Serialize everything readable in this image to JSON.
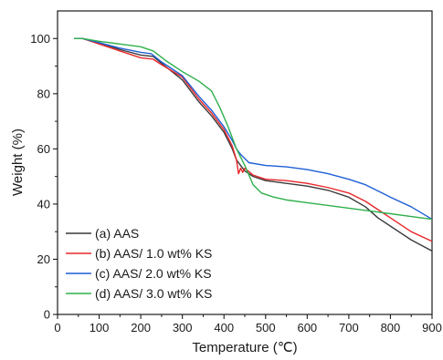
{
  "chart_data": {
    "type": "line",
    "xlabel": "Temperature (℃)",
    "ylabel": "Weight (%)",
    "xlim": [
      0,
      900
    ],
    "ylim": [
      0,
      110
    ],
    "xticks": [
      "0",
      "100",
      "200",
      "300",
      "400",
      "500",
      "600",
      "700",
      "800",
      "900"
    ],
    "yticks": [
      "0",
      "20",
      "40",
      "60",
      "80",
      "100"
    ],
    "grid": false,
    "legend_position": "bottom-left",
    "series": [
      {
        "name": "(a) AAS",
        "color": "#3a3a3a",
        "points": [
          [
            40,
            100
          ],
          [
            60,
            100
          ],
          [
            100,
            98.5
          ],
          [
            150,
            96
          ],
          [
            200,
            94
          ],
          [
            230,
            93.5
          ],
          [
            250,
            91
          ],
          [
            300,
            85
          ],
          [
            340,
            77
          ],
          [
            370,
            72
          ],
          [
            400,
            66
          ],
          [
            420,
            60
          ],
          [
            430,
            56
          ],
          [
            440,
            54
          ],
          [
            450,
            52
          ],
          [
            470,
            50
          ],
          [
            500,
            48.5
          ],
          [
            550,
            47.5
          ],
          [
            600,
            46.5
          ],
          [
            650,
            45
          ],
          [
            700,
            42.5
          ],
          [
            740,
            39
          ],
          [
            770,
            35
          ],
          [
            800,
            32
          ],
          [
            850,
            27
          ],
          [
            900,
            23
          ]
        ]
      },
      {
        "name": "(b) AAS/ 1.0 wt% KS",
        "color": "#e8262a",
        "points": [
          [
            40,
            100
          ],
          [
            60,
            100
          ],
          [
            100,
            98
          ],
          [
            150,
            95.5
          ],
          [
            200,
            93
          ],
          [
            230,
            92.5
          ],
          [
            250,
            90.5
          ],
          [
            300,
            86
          ],
          [
            340,
            78
          ],
          [
            370,
            73
          ],
          [
            400,
            67
          ],
          [
            420,
            61
          ],
          [
            430,
            56
          ],
          [
            435,
            51
          ],
          [
            440,
            53
          ],
          [
            445,
            51.5
          ],
          [
            450,
            53
          ],
          [
            470,
            50.5
          ],
          [
            500,
            49
          ],
          [
            550,
            48.5
          ],
          [
            600,
            47.5
          ],
          [
            650,
            46
          ],
          [
            700,
            44
          ],
          [
            740,
            41
          ],
          [
            780,
            37
          ],
          [
            800,
            35
          ],
          [
            850,
            30
          ],
          [
            900,
            26.5
          ]
        ]
      },
      {
        "name": "(c) AAS/ 2.0 wt% KS",
        "color": "#1f5fd6",
        "points": [
          [
            40,
            100
          ],
          [
            60,
            100
          ],
          [
            100,
            98.5
          ],
          [
            150,
            96.5
          ],
          [
            200,
            95
          ],
          [
            225,
            94.5
          ],
          [
            250,
            91.5
          ],
          [
            300,
            86.5
          ],
          [
            340,
            79
          ],
          [
            370,
            74
          ],
          [
            400,
            68
          ],
          [
            420,
            63
          ],
          [
            430,
            60
          ],
          [
            440,
            58
          ],
          [
            460,
            55
          ],
          [
            500,
            54
          ],
          [
            550,
            53.5
          ],
          [
            600,
            52.5
          ],
          [
            650,
            51
          ],
          [
            700,
            49
          ],
          [
            740,
            47
          ],
          [
            780,
            44
          ],
          [
            800,
            42.5
          ],
          [
            850,
            39
          ],
          [
            900,
            34.5
          ]
        ]
      },
      {
        "name": "(d) AAS/ 3.0 wt% KS",
        "color": "#2fb04d",
        "points": [
          [
            40,
            100
          ],
          [
            60,
            100
          ],
          [
            100,
            99
          ],
          [
            150,
            98
          ],
          [
            200,
            97
          ],
          [
            230,
            95.5
          ],
          [
            260,
            92
          ],
          [
            300,
            88
          ],
          [
            340,
            84.5
          ],
          [
            370,
            81
          ],
          [
            390,
            75
          ],
          [
            410,
            68
          ],
          [
            430,
            60
          ],
          [
            450,
            54
          ],
          [
            470,
            47
          ],
          [
            490,
            44
          ],
          [
            520,
            42.5
          ],
          [
            550,
            41.5
          ],
          [
            600,
            40.5
          ],
          [
            650,
            39.5
          ],
          [
            700,
            38.5
          ],
          [
            750,
            37.5
          ],
          [
            800,
            36.5
          ],
          [
            850,
            35.5
          ],
          [
            900,
            34.5
          ]
        ]
      }
    ]
  }
}
